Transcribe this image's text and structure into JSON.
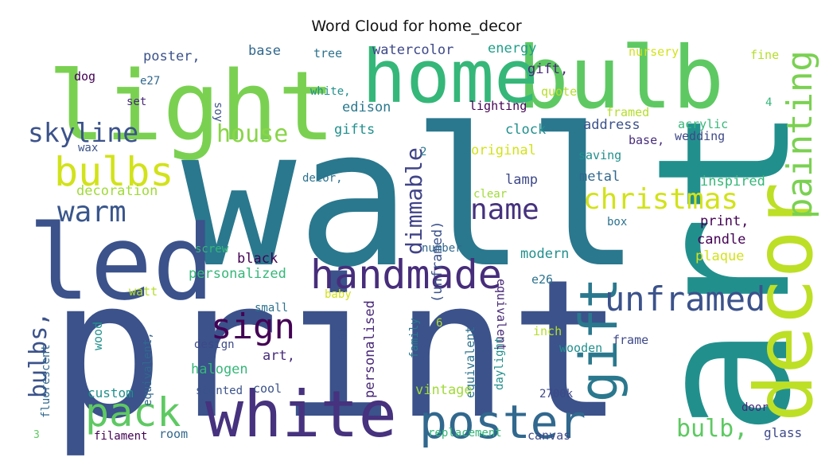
{
  "chart_data": {
    "type": "wordcloud",
    "title": "Word Cloud for home_decor",
    "colormap": "viridis",
    "background": "#ffffff",
    "words": [
      {
        "text": "wall",
        "weight": 1.0,
        "color": "#2a788e"
      },
      {
        "text": "print",
        "weight": 0.98,
        "color": "#3b528b"
      },
      {
        "text": "art",
        "weight": 0.94,
        "color": "#21908d"
      },
      {
        "text": "light",
        "weight": 0.62,
        "color": "#7ad151"
      },
      {
        "text": "bulb",
        "weight": 0.61,
        "color": "#5ec962"
      },
      {
        "text": "home",
        "weight": 0.52,
        "color": "#35b779"
      },
      {
        "text": "led",
        "weight": 0.55,
        "color": "#3b528b"
      },
      {
        "text": "white",
        "weight": 0.48,
        "color": "#46327e"
      },
      {
        "text": "decor",
        "weight": 0.58,
        "color": "#bddf26"
      },
      {
        "text": "poster",
        "weight": 0.34,
        "color": "#31688e"
      },
      {
        "text": "gift",
        "weight": 0.36,
        "color": "#2a788e"
      },
      {
        "text": "handmade",
        "weight": 0.3,
        "color": "#472d7b"
      },
      {
        "text": "bulbs",
        "weight": 0.3,
        "color": "#d2e21b"
      },
      {
        "text": "painting",
        "weight": 0.26,
        "color": "#7ad151"
      },
      {
        "text": "pack",
        "weight": 0.3,
        "color": "#5ec962"
      },
      {
        "text": "unframed",
        "weight": 0.26,
        "color": "#3b528b"
      },
      {
        "text": "sign",
        "weight": 0.26,
        "color": "#440154"
      },
      {
        "text": "christmas",
        "weight": 0.24,
        "color": "#d2e21b"
      },
      {
        "text": "warm",
        "weight": 0.23,
        "color": "#39568c"
      },
      {
        "text": "name",
        "weight": 0.21,
        "color": "#46327e"
      },
      {
        "text": "skyline",
        "weight": 0.21,
        "color": "#3b528b"
      },
      {
        "text": "house",
        "weight": 0.21,
        "color": "#89d548"
      },
      {
        "text": "dimmable",
        "weight": 0.2,
        "color": "#414487"
      },
      {
        "text": "bulbs,",
        "weight": 0.22,
        "color": "#3b528b"
      },
      {
        "text": "bulb,",
        "weight": 0.22,
        "color": "#5ec962"
      },
      {
        "text": "personalized",
        "weight": 0.1,
        "color": "#35b779"
      },
      {
        "text": "black",
        "weight": 0.1,
        "color": "#440154"
      },
      {
        "text": "halogen",
        "weight": 0.1,
        "color": "#35b779"
      },
      {
        "text": "art,",
        "weight": 0.1,
        "color": "#472d7b"
      },
      {
        "text": "poster,",
        "weight": 0.09,
        "color": "#3b528b"
      },
      {
        "text": "base",
        "weight": 0.09,
        "color": "#31688e"
      },
      {
        "text": "tree",
        "weight": 0.08,
        "color": "#2c728e"
      },
      {
        "text": "watercolor",
        "weight": 0.09,
        "color": "#3e4989"
      },
      {
        "text": "energy",
        "weight": 0.09,
        "color": "#1f9e89"
      },
      {
        "text": "gift,",
        "weight": 0.1,
        "color": "#482878"
      },
      {
        "text": "nursery",
        "weight": 0.08,
        "color": "#d2e21b"
      },
      {
        "text": "fine",
        "weight": 0.07,
        "color": "#b5de2b"
      },
      {
        "text": "dog",
        "weight": 0.08,
        "color": "#440154"
      },
      {
        "text": "e27",
        "weight": 0.07,
        "color": "#31688e"
      },
      {
        "text": "set",
        "weight": 0.07,
        "color": "#482878"
      },
      {
        "text": "soy",
        "weight": 0.07,
        "color": "#3b528b"
      },
      {
        "text": "white,",
        "weight": 0.07,
        "color": "#21908d"
      },
      {
        "text": "edison",
        "weight": 0.09,
        "color": "#2a788e"
      },
      {
        "text": "quote",
        "weight": 0.08,
        "color": "#b5de2b"
      },
      {
        "text": "lighting",
        "weight": 0.08,
        "color": "#440154"
      },
      {
        "text": "framed",
        "weight": 0.08,
        "color": "#b5de2b"
      },
      {
        "text": "4",
        "weight": 0.07,
        "color": "#35b779"
      },
      {
        "text": "gifts",
        "weight": 0.09,
        "color": "#21908d"
      },
      {
        "text": "clock",
        "weight": 0.09,
        "color": "#21908d"
      },
      {
        "text": "address",
        "weight": 0.09,
        "color": "#3b528b"
      },
      {
        "text": "acrylic",
        "weight": 0.08,
        "color": "#35b779"
      },
      {
        "text": "wedding",
        "weight": 0.08,
        "color": "#3e4989"
      },
      {
        "text": "wax",
        "weight": 0.07,
        "color": "#3b528b"
      },
      {
        "text": "2",
        "weight": 0.07,
        "color": "#2a788e"
      },
      {
        "text": "original",
        "weight": 0.09,
        "color": "#d2e21b"
      },
      {
        "text": "saving",
        "weight": 0.08,
        "color": "#21908d"
      },
      {
        "text": "base,",
        "weight": 0.08,
        "color": "#472d7b"
      },
      {
        "text": "decoration",
        "weight": 0.09,
        "color": "#a0da39"
      },
      {
        "text": "(unframed)",
        "weight": 0.09,
        "color": "#3b528b"
      },
      {
        "text": "lamp",
        "weight": 0.09,
        "color": "#3e4989"
      },
      {
        "text": "metal",
        "weight": 0.09,
        "color": "#31688e"
      },
      {
        "text": "inspired",
        "weight": 0.09,
        "color": "#35b779"
      },
      {
        "text": "decor,",
        "weight": 0.07,
        "color": "#2c728e"
      },
      {
        "text": "clear",
        "weight": 0.07,
        "color": "#a0da39"
      },
      {
        "text": "box",
        "weight": 0.07,
        "color": "#2c728e"
      },
      {
        "text": "print,",
        "weight": 0.09,
        "color": "#440154"
      },
      {
        "text": "candle",
        "weight": 0.09,
        "color": "#440154"
      },
      {
        "text": "screw",
        "weight": 0.07,
        "color": "#35b779"
      },
      {
        "text": "number",
        "weight": 0.07,
        "color": "#31688e"
      },
      {
        "text": "modern",
        "weight": 0.09,
        "color": "#21908d"
      },
      {
        "text": "plaque",
        "weight": 0.09,
        "color": "#d2e21b"
      },
      {
        "text": "watt",
        "weight": 0.08,
        "color": "#b5de2b"
      },
      {
        "text": "baby",
        "weight": 0.07,
        "color": "#d2e21b"
      },
      {
        "text": "e26",
        "weight": 0.08,
        "color": "#2c728e"
      },
      {
        "text": "small",
        "weight": 0.07,
        "color": "#2c728e"
      },
      {
        "text": "10",
        "weight": 0.07,
        "color": "#3b528b"
      },
      {
        "text": "6",
        "weight": 0.07,
        "color": "#b5de2b"
      },
      {
        "text": "wood",
        "weight": 0.08,
        "color": "#21908d"
      },
      {
        "text": "equivalent,",
        "weight": 0.08,
        "color": "#31688e"
      },
      {
        "text": "design",
        "weight": 0.07,
        "color": "#3e4989"
      },
      {
        "text": "personalised",
        "weight": 0.09,
        "color": "#482878"
      },
      {
        "text": "family",
        "weight": 0.08,
        "color": "#2a788e"
      },
      {
        "text": "equivalent",
        "weight": 0.09,
        "color": "#2c728e"
      },
      {
        "text": "daylight",
        "weight": 0.08,
        "color": "#21908d"
      },
      {
        "text": "inch",
        "weight": 0.08,
        "color": "#b5de2b"
      },
      {
        "text": "wooden",
        "weight": 0.08,
        "color": "#21908d"
      },
      {
        "text": "frame",
        "weight": 0.08,
        "color": "#3e4989"
      },
      {
        "text": "equivalent",
        "weight": 0.09,
        "color": "#482878"
      },
      {
        "text": "fluorescent",
        "weight": 0.07,
        "color": "#31688e"
      },
      {
        "text": "custom",
        "weight": 0.08,
        "color": "#21908d"
      },
      {
        "text": "scented",
        "weight": 0.07,
        "color": "#3b528b"
      },
      {
        "text": "cool",
        "weight": 0.07,
        "color": "#3b528b"
      },
      {
        "text": "vintage",
        "weight": 0.09,
        "color": "#a0da39"
      },
      {
        "text": "2700k",
        "weight": 0.07,
        "color": "#3e4989"
      },
      {
        "text": "door",
        "weight": 0.07,
        "color": "#482878"
      },
      {
        "text": "3",
        "weight": 0.06,
        "color": "#5ec962"
      },
      {
        "text": "filament",
        "weight": 0.07,
        "color": "#440154"
      },
      {
        "text": "room",
        "weight": 0.08,
        "color": "#31688e"
      },
      {
        "text": "replacement",
        "weight": 0.07,
        "color": "#35b779"
      },
      {
        "text": "canvas",
        "weight": 0.08,
        "color": "#3e4989"
      },
      {
        "text": "glass",
        "weight": 0.08,
        "color": "#3e4989"
      }
    ]
  }
}
